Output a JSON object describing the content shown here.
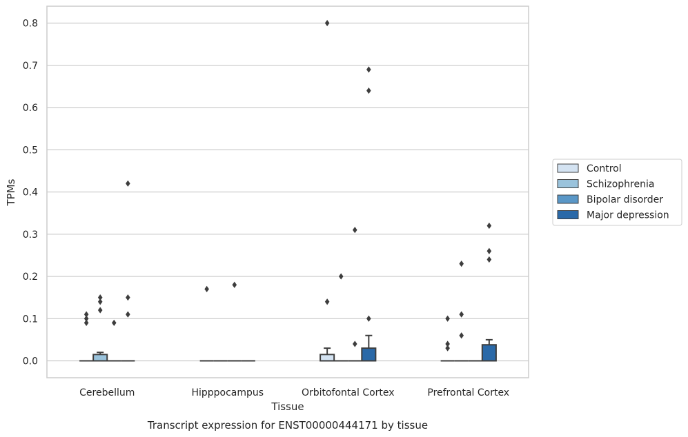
{
  "chart_data": {
    "type": "boxplot",
    "caption": "Transcript expression for ENST00000444171 by tissue",
    "xlabel": "Tissue",
    "ylabel": "TPMs",
    "ylim": [
      -0.04,
      0.84
    ],
    "yticks": [
      0.0,
      0.1,
      0.2,
      0.3,
      0.4,
      0.5,
      0.6,
      0.7,
      0.8
    ],
    "ytick_labels": [
      "0.0",
      "0.1",
      "0.2",
      "0.3",
      "0.4",
      "0.5",
      "0.6",
      "0.7",
      "0.8"
    ],
    "grid": true,
    "legend_position": "right",
    "categories": [
      "Cerebellum",
      "Hipppocampus",
      "Orbitofontal Cortex",
      "Prefrontal Cortex"
    ],
    "series": [
      {
        "name": "Control",
        "color": "#d4e3f2",
        "boxes": [
          {
            "q1": 0,
            "median": 0,
            "q3": 0,
            "whisker_low": 0,
            "whisker_high": 0,
            "outliers": [
              0.11,
              0.1,
              0.09
            ]
          },
          {
            "q1": 0,
            "median": 0,
            "q3": 0,
            "whisker_low": 0,
            "whisker_high": 0,
            "outliers": [
              0.17
            ]
          },
          {
            "q1": 0,
            "median": 0,
            "q3": 0.015,
            "whisker_low": 0,
            "whisker_high": 0.03,
            "outliers": [
              0.14,
              0.8
            ]
          },
          {
            "q1": 0,
            "median": 0,
            "q3": 0,
            "whisker_low": 0,
            "whisker_high": 0,
            "outliers": [
              0.1,
              0.04,
              0.03
            ]
          }
        ]
      },
      {
        "name": "Schizophrenia",
        "color": "#9ac3dc",
        "boxes": [
          {
            "q1": 0,
            "median": 0,
            "q3": 0.015,
            "whisker_low": 0,
            "whisker_high": 0.02,
            "outliers": [
              0.15,
              0.14,
              0.12
            ]
          },
          {
            "q1": 0,
            "median": 0,
            "q3": 0,
            "whisker_low": 0,
            "whisker_high": 0,
            "outliers": []
          },
          {
            "q1": 0,
            "median": 0,
            "q3": 0,
            "whisker_low": 0,
            "whisker_high": 0,
            "outliers": [
              0.2
            ]
          },
          {
            "q1": 0,
            "median": 0,
            "q3": 0,
            "whisker_low": 0,
            "whisker_high": 0,
            "outliers": [
              0.23,
              0.11,
              0.06
            ]
          }
        ]
      },
      {
        "name": "Bipolar disorder",
        "color": "#5a97c7",
        "boxes": [
          {
            "q1": 0,
            "median": 0,
            "q3": 0,
            "whisker_low": 0,
            "whisker_high": 0,
            "outliers": [
              0.09
            ]
          },
          {
            "q1": 0,
            "median": 0,
            "q3": 0,
            "whisker_low": 0,
            "whisker_high": 0,
            "outliers": [
              0.18
            ]
          },
          {
            "q1": 0,
            "median": 0,
            "q3": 0,
            "whisker_low": 0,
            "whisker_high": 0,
            "outliers": [
              0.31,
              0.04
            ]
          },
          {
            "q1": 0,
            "median": 0,
            "q3": 0,
            "whisker_low": 0,
            "whisker_high": 0,
            "outliers": []
          }
        ]
      },
      {
        "name": "Major depression",
        "color": "#2a69a8",
        "boxes": [
          {
            "q1": 0,
            "median": 0,
            "q3": 0,
            "whisker_low": 0,
            "whisker_high": 0,
            "outliers": [
              0.42,
              0.15,
              0.11
            ]
          },
          {
            "q1": 0,
            "median": 0,
            "q3": 0,
            "whisker_low": 0,
            "whisker_high": 0,
            "outliers": []
          },
          {
            "q1": 0,
            "median": 0,
            "q3": 0.03,
            "whisker_low": 0,
            "whisker_high": 0.06,
            "outliers": [
              0.69,
              0.64,
              0.1
            ]
          },
          {
            "q1": 0,
            "median": 0,
            "q3": 0.038,
            "whisker_low": 0,
            "whisker_high": 0.05,
            "outliers": [
              0.32,
              0.26,
              0.24
            ]
          }
        ]
      }
    ]
  }
}
